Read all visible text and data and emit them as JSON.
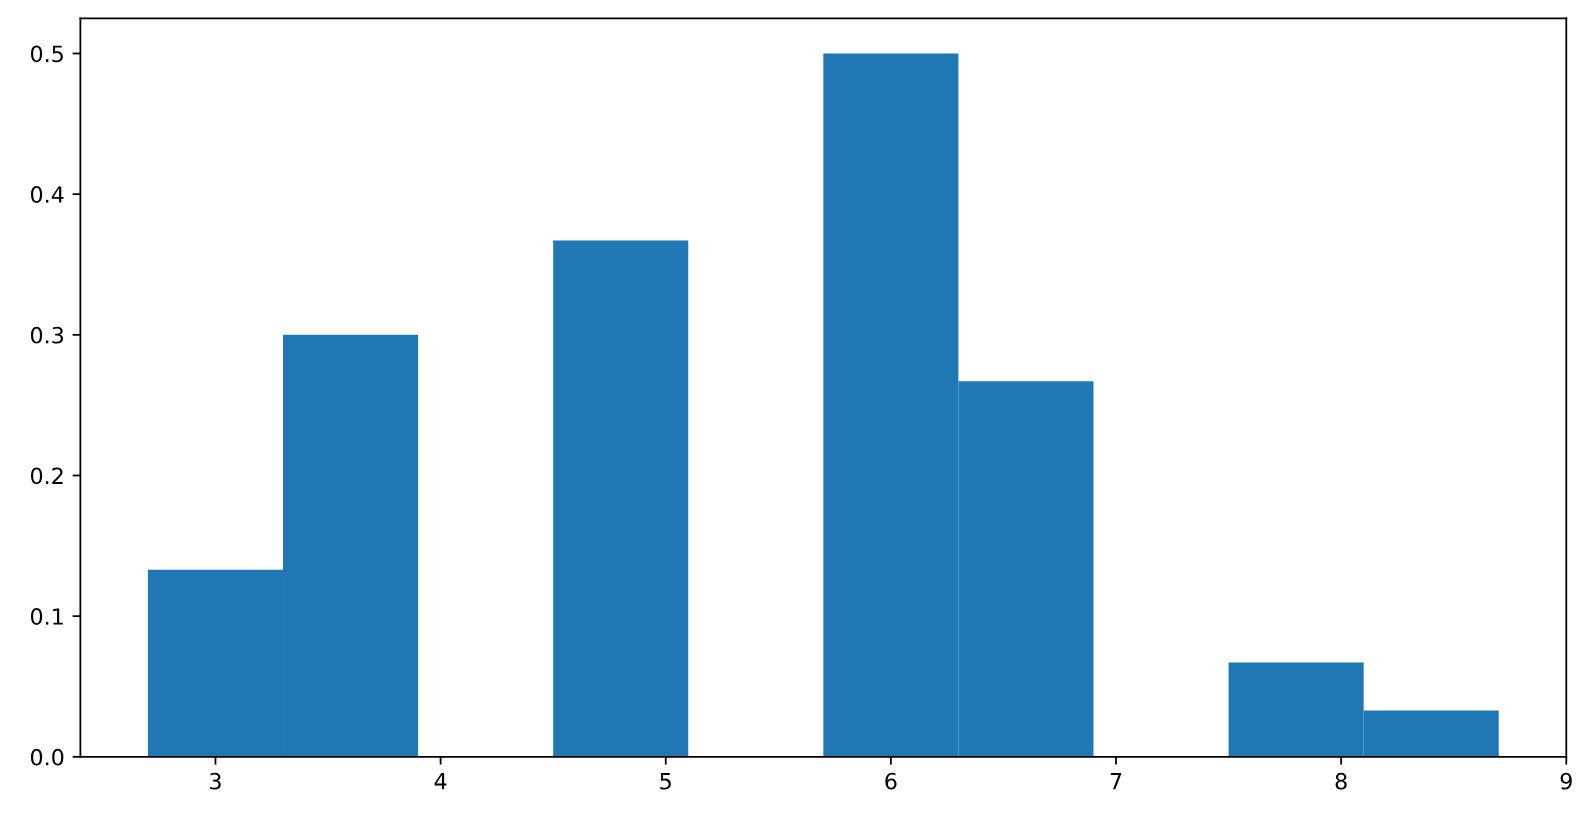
{
  "chart_data": {
    "type": "histogram",
    "bins": [
      2.7,
      3.3,
      3.9,
      4.5,
      5.1,
      5.7,
      6.3,
      6.9,
      7.5,
      8.1,
      8.7
    ],
    "values": [
      0.133,
      0.3,
      0,
      0.367,
      0,
      0.5,
      0.267,
      0,
      0.067,
      0.033
    ],
    "color": "#1f77b4",
    "xlim": [
      2.4,
      9
    ],
    "xticks": [
      3,
      4,
      5,
      6,
      7,
      8,
      9
    ],
    "ylim": [
      0,
      0.525
    ],
    "yticks": [
      {
        "value": 0,
        "label": "0.0"
      },
      0.1,
      0.2,
      0.3,
      0.4,
      0.5
    ]
  }
}
